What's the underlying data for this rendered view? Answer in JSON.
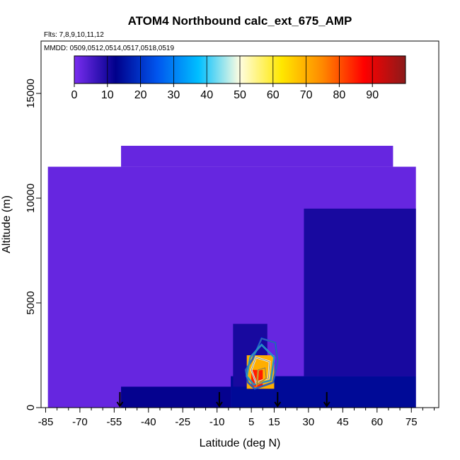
{
  "chart_data": {
    "type": "heatmap",
    "title": "ATOM4 Northbound calc_ext_675_AMP",
    "subtitle_lines": [
      "Flts: 7,8,9,10,11,12",
      "MMDD: 0509,0512,0514,0517,0518,0519"
    ],
    "xlabel": "Latitude (deg N)",
    "ylabel": "Altitude (m)",
    "xlim": [
      -87,
      87
    ],
    "ylim": [
      0,
      17500
    ],
    "x_ticks": [
      -85,
      -70,
      -55,
      -40,
      -25,
      -10,
      5,
      15,
      30,
      45,
      60,
      75
    ],
    "x_minor_ticks": [
      -80,
      -75,
      -65,
      -60,
      -50,
      -45,
      -35,
      -30,
      -20,
      -15,
      -5,
      0,
      10,
      20,
      25,
      35,
      40,
      50,
      55,
      65,
      70,
      80,
      85
    ],
    "y_ticks": [
      0,
      5000,
      10000,
      15000
    ],
    "colorbar": {
      "min": 0,
      "max": 100,
      "ticks": [
        0,
        10,
        20,
        30,
        40,
        50,
        60,
        70,
        80,
        90
      ],
      "colors": [
        "#7a2df0",
        "#00008b",
        "#0055ee",
        "#00bfff",
        "#fffde0",
        "#ffe800",
        "#ff8800",
        "#ff0000",
        "#8b1a1a"
      ]
    },
    "background_value": 2,
    "fields": [
      {
        "region": "main curtain",
        "lat_range": [
          -84,
          77
        ],
        "alt_range": [
          0,
          11500
        ],
        "value": 2
      },
      {
        "region": "upper curtain",
        "lat_range": [
          -52,
          67
        ],
        "alt_range": [
          11500,
          12500
        ],
        "value": 2
      },
      {
        "region": "low-level southern band",
        "lat_range": [
          -52,
          -4
        ],
        "alt_range": [
          0,
          1000
        ],
        "value": 12
      },
      {
        "region": "low-level northern band",
        "lat_range": [
          -4,
          77
        ],
        "alt_range": [
          0,
          1500
        ],
        "value": 14
      },
      {
        "region": "tropical column",
        "lat_range": [
          -3,
          12
        ],
        "alt_range": [
          1000,
          4000
        ],
        "value": 10
      },
      {
        "region": "northern mid-troposphere",
        "lat_range": [
          28,
          77
        ],
        "alt_range": [
          1500,
          9500
        ],
        "value": 10
      },
      {
        "region": "tropical plume core",
        "lat_range": [
          3,
          15
        ],
        "alt_range": [
          900,
          2500
        ],
        "value": 70
      },
      {
        "region": "tropical plume peak",
        "lat_range": [
          5,
          10
        ],
        "alt_range": [
          1000,
          1800
        ],
        "value": 85
      }
    ],
    "contours": [
      {
        "level": 25,
        "points": [
          [
            6.5,
            900
          ],
          [
            14.5,
            1200
          ],
          [
            16.5,
            2200
          ],
          [
            15.5,
            3100
          ],
          [
            9.5,
            3300
          ],
          [
            5.5,
            2300
          ],
          [
            2.5,
            1800
          ],
          [
            3.5,
            1200
          ]
        ]
      },
      {
        "level": 35,
        "points": [
          [
            6,
            1100
          ],
          [
            13.5,
            1300
          ],
          [
            15,
            2400
          ],
          [
            9.5,
            3000
          ],
          [
            4.5,
            2400
          ],
          [
            3,
            1500
          ]
        ]
      },
      {
        "level": 50,
        "points": [
          [
            7,
            1200
          ],
          [
            12.5,
            1400
          ],
          [
            13,
            2200
          ],
          [
            7,
            2400
          ],
          [
            5,
            1800
          ]
        ]
      },
      {
        "level": 70,
        "points": [
          [
            7.5,
            1100
          ],
          [
            11.5,
            1400
          ],
          [
            11,
            1900
          ],
          [
            8,
            1800
          ]
        ]
      }
    ],
    "markers": {
      "style": "arrow",
      "latitudes": [
        -52.5,
        -9,
        16.5,
        38
      ]
    },
    "legend": "colorbar top-center",
    "grid": false
  }
}
